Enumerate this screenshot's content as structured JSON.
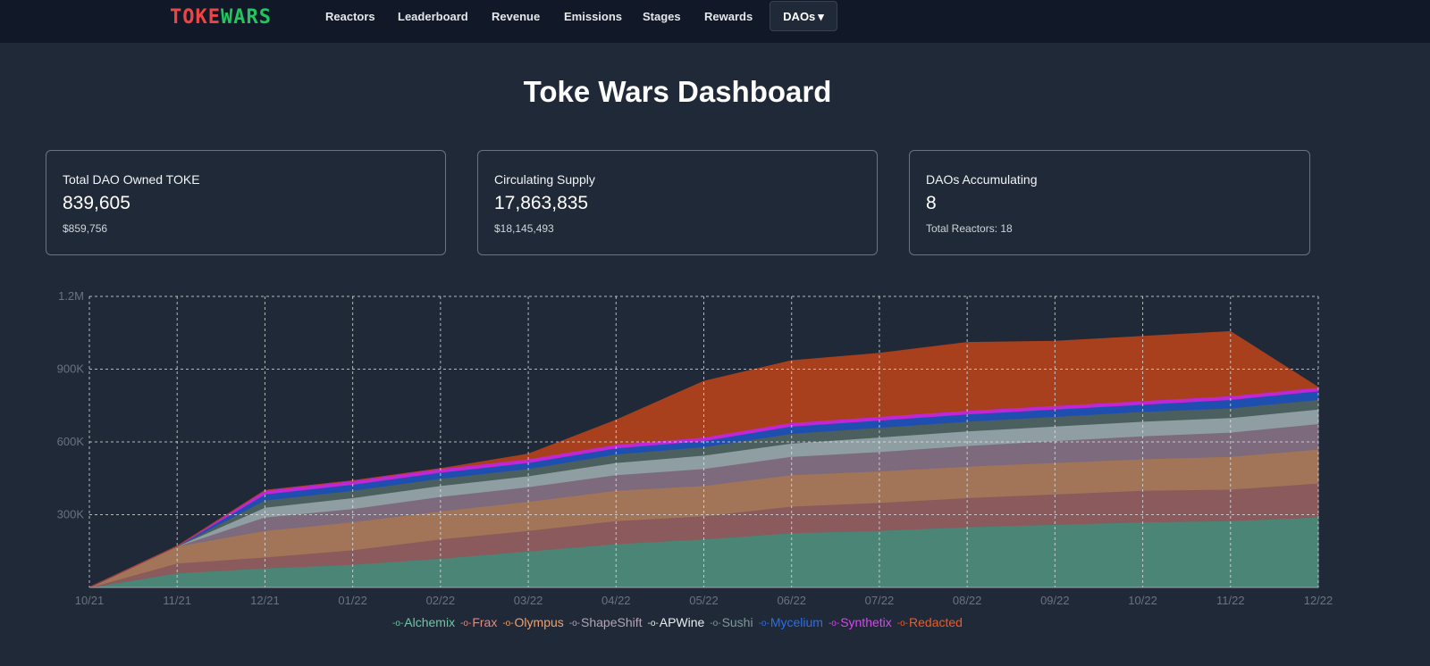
{
  "nav": {
    "logo_part1": "TOKE",
    "logo_part2": "WARS",
    "items": [
      "Reactors",
      "Leaderboard",
      "Revenue",
      "Emissions",
      "Stages",
      "Rewards"
    ],
    "dropdown_label": "DAOs",
    "dropdown_caret": "▾"
  },
  "page_title": "Toke Wars Dashboard",
  "cards": [
    {
      "label": "Total DAO Owned TOKE",
      "value": "839,605",
      "sub": "$859,756"
    },
    {
      "label": "Circulating Supply",
      "value": "17,863,835",
      "sub": "$18,145,493"
    },
    {
      "label": "DAOs Accumulating",
      "value": "8",
      "sub": "Total Reactors: 18"
    }
  ],
  "chart_data": {
    "type": "area",
    "stacked": true,
    "title": "",
    "xlabel": "",
    "ylabel": "",
    "ylim": [
      0,
      1200000
    ],
    "yticks": [
      300000,
      600000,
      900000,
      1200000
    ],
    "ytick_labels": [
      "300K",
      "600K",
      "900K",
      "1.2M"
    ],
    "xtick_labels": [
      "10/21",
      "11/21",
      "12/21",
      "01/22",
      "02/22",
      "03/22",
      "04/22",
      "05/22",
      "06/22",
      "07/22",
      "08/22",
      "09/22",
      "10/22",
      "11/22",
      "12/22"
    ],
    "x": [
      "2021-10",
      "2021-11",
      "2021-12",
      "2022-01",
      "2022-02",
      "2022-03",
      "2022-04",
      "2022-05",
      "2022-06",
      "2022-07",
      "2022-08",
      "2022-09",
      "2022-10",
      "2022-11",
      "2022-12"
    ],
    "grid": true,
    "legend": "bottom",
    "series": [
      {
        "name": "Alchemix",
        "color": "#4a8576",
        "values": [
          0,
          60000,
          80000,
          95000,
          120000,
          150000,
          180000,
          200000,
          225000,
          235000,
          250000,
          260000,
          270000,
          275000,
          290000
        ]
      },
      {
        "name": "Frax",
        "color": "#8a5a5c",
        "values": [
          0,
          40000,
          45000,
          60000,
          80000,
          85000,
          95000,
          95000,
          110000,
          115000,
          120000,
          125000,
          130000,
          130000,
          140000
        ]
      },
      {
        "name": "Olympus",
        "color": "#a27458",
        "values": [
          0,
          70000,
          110000,
          115000,
          115000,
          120000,
          125000,
          125000,
          130000,
          130000,
          130000,
          130000,
          130000,
          135000,
          140000
        ]
      },
      {
        "name": "ShapeShift",
        "color": "#7d6a7d",
        "values": [
          0,
          0,
          55000,
          55000,
          60000,
          60000,
          65000,
          70000,
          75000,
          80000,
          85000,
          90000,
          95000,
          100000,
          105000
        ]
      },
      {
        "name": "APWine",
        "color": "#8e9ea3",
        "values": [
          0,
          0,
          40000,
          45000,
          45000,
          45000,
          50000,
          55000,
          55000,
          60000,
          60000,
          60000,
          60000,
          60000,
          60000
        ]
      },
      {
        "name": "Sushi",
        "color": "#4b5f5e",
        "values": [
          0,
          0,
          30000,
          30000,
          30000,
          30000,
          35000,
          35000,
          40000,
          40000,
          40000,
          40000,
          40000,
          40000,
          40000
        ]
      },
      {
        "name": "Mycelium",
        "color": "#1e4fb0",
        "values": [
          0,
          0,
          25000,
          25000,
          25000,
          25000,
          25000,
          25000,
          30000,
          30000,
          30000,
          30000,
          30000,
          35000,
          35000
        ]
      },
      {
        "name": "Synthetix",
        "color": "#c026d3",
        "values": [
          0,
          0,
          15000,
          15000,
          15000,
          15000,
          15000,
          15000,
          15000,
          15000,
          15000,
          15000,
          15000,
          15000,
          15000
        ]
      },
      {
        "name": "Redacted",
        "color": "#a8401e",
        "values": [
          0,
          0,
          0,
          0,
          0,
          20000,
          100000,
          230000,
          255000,
          260000,
          280000,
          265000,
          265000,
          265000,
          0
        ]
      }
    ]
  },
  "legend_colors": {
    "Alchemix": "#6fc6a5",
    "Frax": "#e9877e",
    "Olympus": "#f0a06e",
    "ShapeShift": "#b7a3b7",
    "APWine": "#e6edf0",
    "Sushi": "#7f9a97",
    "Mycelium": "#2d6ee6",
    "Synthetix": "#d946ef",
    "Redacted": "#f15a24"
  },
  "theme": {
    "background": "#1f2937",
    "navbar": "#111827",
    "grid": "#e5e7eb",
    "axis_text": "#6b7280"
  },
  "legend_marker": "-o-"
}
